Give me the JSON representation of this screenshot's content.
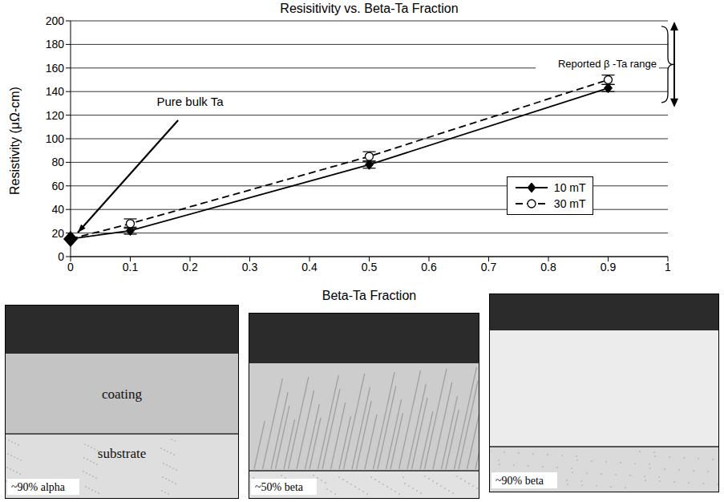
{
  "chart_data": {
    "type": "line",
    "title": "Resisitivity vs. Beta-Ta Fraction",
    "x_label": "Beta-Ta Fraction",
    "y_label": "Resistivity (μΩ-cm)",
    "xlim": [
      0,
      1
    ],
    "xticks": [
      0,
      0.1,
      0.2,
      0.3,
      0.4,
      0.5,
      0.6,
      0.7,
      0.8,
      0.9,
      1
    ],
    "ylim": [
      0,
      200
    ],
    "yticks": [
      0,
      20,
      40,
      60,
      80,
      100,
      120,
      140,
      160,
      180,
      200
    ],
    "grid": "y",
    "legend": "lower right",
    "series": [
      {
        "name": "10 mT",
        "color": "#000000",
        "marker": "diamond",
        "line_style": "solid",
        "x": [
          0,
          0.1,
          0.5,
          0.9
        ],
        "values": [
          15,
          22,
          78,
          143
        ],
        "errors": [
          0,
          3,
          3,
          3
        ]
      },
      {
        "name": "30 mT",
        "color": "#000000",
        "marker": "open circle",
        "line_style": "dashed",
        "x": [
          0,
          0.1,
          0.5,
          0.9
        ],
        "values": [
          15,
          28,
          85,
          150
        ],
        "errors": [
          0,
          4,
          4,
          4
        ]
      }
    ],
    "annotations": [
      {
        "text": "Pure bulk Ta",
        "x": 0,
        "y": 15
      },
      {
        "text": "Reported β -Ta range",
        "x": 1,
        "y_range": [
          128,
          198
        ]
      }
    ]
  },
  "micrographs": [
    {
      "label": "~90% alpha",
      "layer_labels": [
        "coating",
        "substrate"
      ]
    },
    {
      "label": "~50% beta"
    },
    {
      "label": "~90% beta"
    }
  ]
}
